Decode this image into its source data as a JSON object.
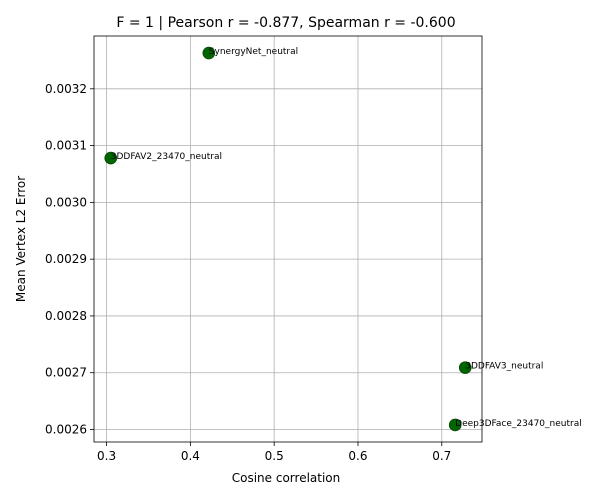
{
  "chart_data": {
    "type": "scatter",
    "title": "F = 1 | Pearson r = -0.877, Spearman r = -0.600",
    "xlabel": "Cosine correlation",
    "ylabel": "Mean Vertex L2 Error",
    "xlim": [
      0.285,
      0.748
    ],
    "ylim": [
      0.002578,
      0.003293
    ],
    "xticks": [
      0.3,
      0.4,
      0.5,
      0.6,
      0.7
    ],
    "xtick_labels": [
      "0.3",
      "0.4",
      "0.5",
      "0.6",
      "0.7"
    ],
    "yticks": [
      0.0026,
      0.0027,
      0.0028,
      0.0029,
      0.003,
      0.0031,
      0.0032
    ],
    "ytick_labels": [
      "0.0026",
      "0.0027",
      "0.0028",
      "0.0029",
      "0.0030",
      "0.0031",
      "0.0032"
    ],
    "grid": true,
    "marker_color": "#006400",
    "points": [
      {
        "label": "SynergyNet_neutral",
        "x": 0.422,
        "y": 0.003263
      },
      {
        "label": "3DDFAV2_23470_neutral",
        "x": 0.305,
        "y": 0.003078
      },
      {
        "label": "3DDFAV3_neutral",
        "x": 0.728,
        "y": 0.002709
      },
      {
        "label": "Deep3DFace_23470_neutral",
        "x": 0.716,
        "y": 0.002608
      }
    ]
  }
}
